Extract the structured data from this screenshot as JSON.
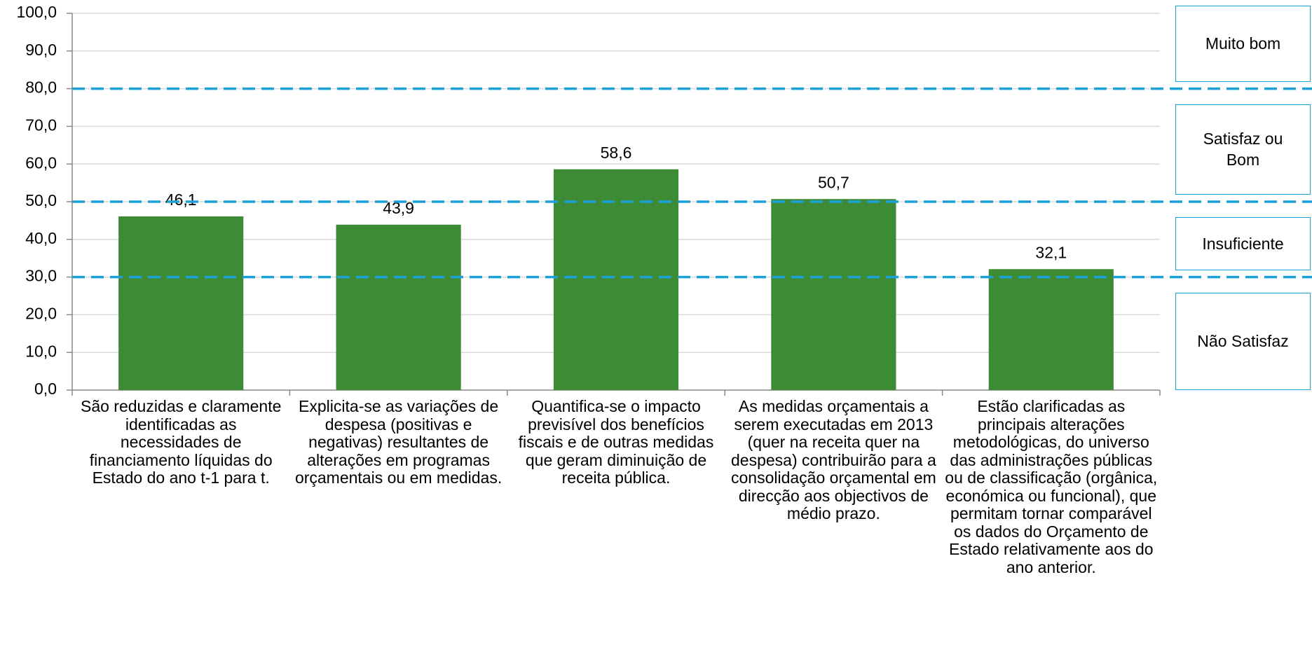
{
  "chart_data": {
    "type": "bar",
    "categories": [
      "São reduzidas e claramente identificadas as necessidades de financiamento líquidas do Estado do ano t-1 para t.",
      "Explicita-se as variações de despesa (positivas e negativas) resultantes de alterações em programas orçamentais ou em medidas.",
      "Quantifica-se o impacto previsível dos benefícios fiscais e de outras medidas que geram diminuição de receita pública.",
      "As medidas orçamentais a serem executadas em 2013 (quer na receita quer na despesa) contribuirão para a consolidação orçamental em direcção aos objectivos de médio prazo.",
      "Estão clarificadas as principais alterações metodológicas, do universo das administrações públicas ou de classificação (orgânica, económica ou funcional), que permitam tornar comparável os dados do Orçamento de Estado relativamente aos do ano anterior."
    ],
    "values": [
      46.1,
      43.9,
      58.6,
      50.7,
      32.1
    ],
    "value_labels": [
      "46,1",
      "43,9",
      "58,6",
      "50,7",
      "32,1"
    ],
    "color": "#3d8b34",
    "ylim": [
      0,
      100
    ],
    "yticks": [
      {
        "value": 0,
        "label": "0,0"
      },
      {
        "value": 10,
        "label": "10,0"
      },
      {
        "value": 20,
        "label": "20,0"
      },
      {
        "value": 30,
        "label": "30,0"
      },
      {
        "value": 40,
        "label": "40,0"
      },
      {
        "value": 50,
        "label": "50,0"
      },
      {
        "value": 60,
        "label": "60,0"
      },
      {
        "value": 70,
        "label": "70,0"
      },
      {
        "value": 80,
        "label": "80,0"
      },
      {
        "value": 90,
        "label": "90,0"
      },
      {
        "value": 100,
        "label": "100,0"
      }
    ],
    "grid": true,
    "thresholds": [
      30,
      50,
      80
    ],
    "threshold_color": "#1ba1d8",
    "bands": [
      "Não Satisfaz",
      "Insuficiente",
      "Satisfaz ou Bom",
      "Muito bom"
    ]
  }
}
